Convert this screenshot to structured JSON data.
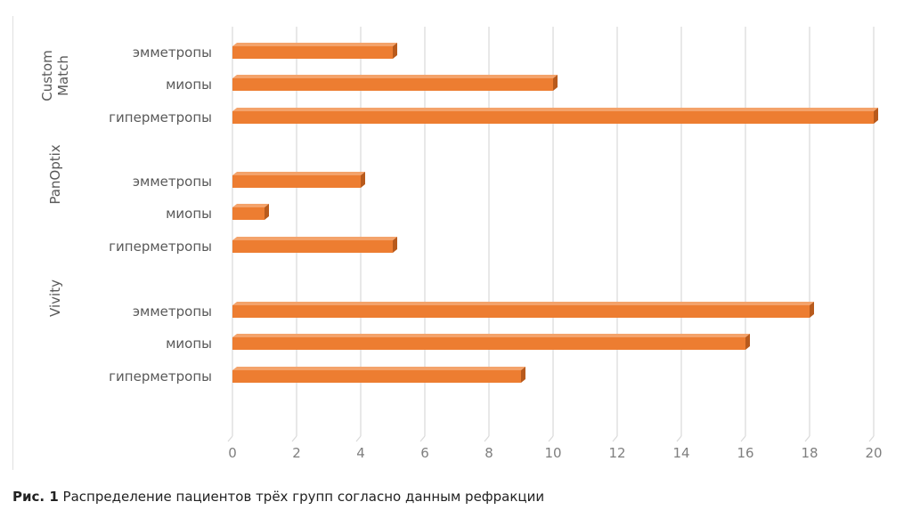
{
  "caption": {
    "figure_label": "Рис. 1",
    "text": "Распределение пациентов трёх групп согласно данным рефракции"
  },
  "colors": {
    "bar_front": "#ED7D31",
    "bar_top": "#F4A36B",
    "bar_side": "#B85A1C",
    "grid": "#d9d9d9",
    "text": "#595959"
  },
  "chart_data": {
    "type": "bar",
    "orientation": "horizontal",
    "style": "3d",
    "xlim": [
      0,
      20
    ],
    "xticks": [
      "0",
      "2",
      "4",
      "6",
      "8",
      "10",
      "12",
      "14",
      "16",
      "18",
      "20"
    ],
    "grid": true,
    "groups": [
      {
        "name": "Custom Match",
        "name_lines": [
          "Custom",
          "Match"
        ],
        "bars": [
          {
            "label": "эмметропы",
            "value": 5
          },
          {
            "label": "миопы",
            "value": 10
          },
          {
            "label": "гиперметропы",
            "value": 20
          }
        ]
      },
      {
        "name": "PanOptix",
        "name_lines": [
          "PanOptix"
        ],
        "bars": [
          {
            "label": "эмметропы",
            "value": 4
          },
          {
            "label": "миопы",
            "value": 1
          },
          {
            "label": "гиперметропы",
            "value": 5
          }
        ]
      },
      {
        "name": "Vivity",
        "name_lines": [
          "Vivity"
        ],
        "bars": [
          {
            "label": "эмметропы",
            "value": 18
          },
          {
            "label": "миопы",
            "value": 16
          },
          {
            "label": "гиперметропы",
            "value": 9
          }
        ]
      }
    ]
  }
}
